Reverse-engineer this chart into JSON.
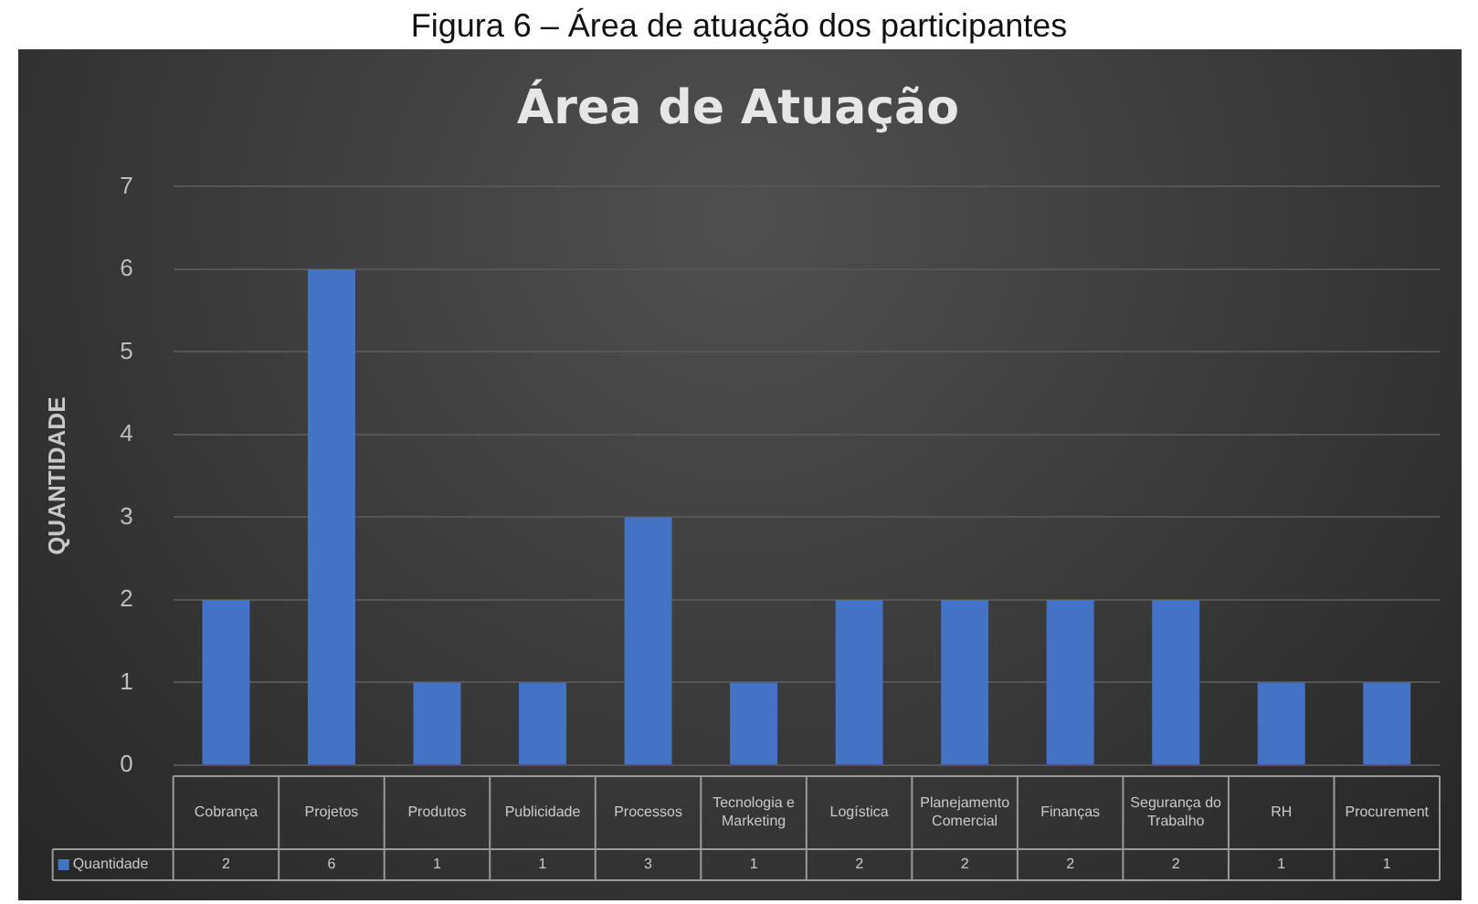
{
  "chart_data": {
    "type": "bar",
    "title": "Área de Atuação",
    "ylabel": "QUANTIDADE",
    "annotations": [
      "Figura 6 – Área de atuação dos participantes"
    ],
    "categories": [
      "Cobrança",
      "Projetos",
      "Produtos",
      "Publicidade",
      "Processos",
      "Tecnologia e Marketing",
      "Logística",
      "Planejamento Comercial",
      "Finanças",
      "Segurança do Trabalho",
      "RH",
      "Procurement"
    ],
    "series": [
      {
        "name": "Quantidade",
        "color": "#4472c4",
        "values": [
          2,
          6,
          1,
          1,
          3,
          1,
          2,
          2,
          2,
          2,
          1,
          1
        ]
      }
    ],
    "ylim": [
      0,
      7
    ],
    "yticks": [
      0,
      1,
      2,
      3,
      4,
      5,
      6,
      7
    ],
    "grid": "y",
    "legend": "bottom",
    "data_labels": true
  }
}
